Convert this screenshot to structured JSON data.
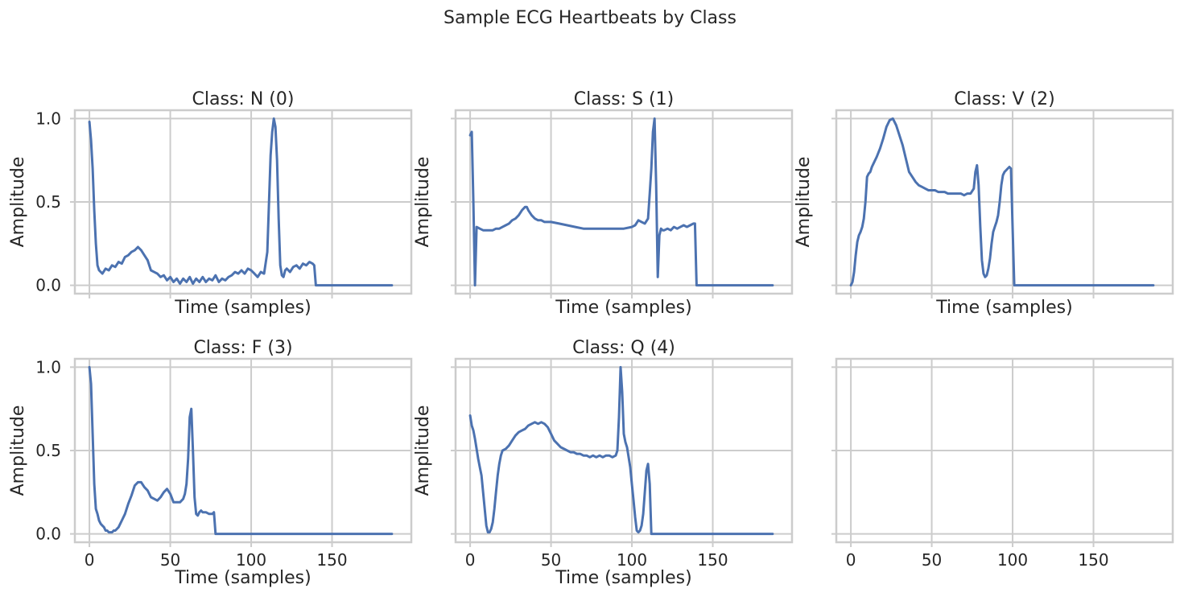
{
  "figure": {
    "title": "Sample ECG Heartbeats by Class"
  },
  "chart_data": [
    {
      "type": "line",
      "title": "Class: N (0)",
      "xlabel": "Time (samples)",
      "ylabel": "Amplitude",
      "xlim": [
        -9,
        199
      ],
      "ylim": [
        -0.05,
        1.05
      ],
      "x_ticks": [
        0,
        50,
        100,
        150
      ],
      "y_ticks": [
        0.0,
        0.5,
        1.0
      ],
      "x_tick_labels": [],
      "y_tick_labels": [
        "0.0",
        "0.5",
        "1.0"
      ],
      "grid": true,
      "x": [
        0,
        1,
        2,
        3,
        4,
        5,
        6,
        7,
        8,
        10,
        12,
        14,
        16,
        18,
        20,
        22,
        24,
        26,
        28,
        30,
        32,
        34,
        36,
        38,
        40,
        42,
        44,
        46,
        48,
        50,
        52,
        54,
        56,
        58,
        60,
        62,
        64,
        66,
        68,
        70,
        72,
        74,
        76,
        78,
        80,
        82,
        84,
        86,
        88,
        90,
        92,
        94,
        96,
        98,
        100,
        102,
        104,
        106,
        108,
        110,
        112,
        113,
        114,
        115,
        116,
        117,
        118,
        119,
        120,
        121,
        122,
        124,
        126,
        128,
        130,
        132,
        134,
        136,
        138,
        139,
        140,
        142,
        144,
        146,
        148,
        150,
        155,
        160,
        165,
        170,
        175,
        180,
        185,
        187
      ],
      "y": [
        0.98,
        0.87,
        0.7,
        0.45,
        0.25,
        0.12,
        0.09,
        0.08,
        0.07,
        0.1,
        0.09,
        0.12,
        0.11,
        0.14,
        0.13,
        0.17,
        0.18,
        0.2,
        0.21,
        0.23,
        0.21,
        0.18,
        0.15,
        0.09,
        0.08,
        0.07,
        0.05,
        0.06,
        0.03,
        0.05,
        0.02,
        0.04,
        0.01,
        0.04,
        0.02,
        0.05,
        0.01,
        0.04,
        0.02,
        0.05,
        0.02,
        0.04,
        0.03,
        0.06,
        0.02,
        0.04,
        0.03,
        0.05,
        0.06,
        0.08,
        0.07,
        0.09,
        0.07,
        0.1,
        0.09,
        0.07,
        0.05,
        0.08,
        0.07,
        0.2,
        0.78,
        0.92,
        1.0,
        0.95,
        0.75,
        0.4,
        0.12,
        0.06,
        0.05,
        0.09,
        0.1,
        0.08,
        0.11,
        0.12,
        0.1,
        0.13,
        0.12,
        0.14,
        0.13,
        0.12,
        0.0,
        0.0,
        0.0,
        0.0,
        0.0,
        0.0,
        0.0,
        0.0,
        0.0,
        0.0,
        0.0,
        0.0,
        0.0,
        0.0
      ],
      "series": [
        {
          "values_ref": "y"
        }
      ]
    },
    {
      "type": "line",
      "title": "Class: S (1)",
      "xlabel": "Time (samples)",
      "ylabel": "Amplitude",
      "xlim": [
        -9,
        199
      ],
      "ylim": [
        -0.05,
        1.05
      ],
      "x_ticks": [
        0,
        50,
        100,
        150
      ],
      "y_ticks": [
        0.0,
        0.5,
        1.0
      ],
      "x_tick_labels": [],
      "y_tick_labels": [],
      "grid": true,
      "x": [
        0,
        1,
        2,
        3,
        4,
        6,
        8,
        10,
        12,
        14,
        16,
        18,
        20,
        22,
        24,
        26,
        28,
        30,
        32,
        34,
        35,
        36,
        38,
        40,
        42,
        44,
        46,
        48,
        50,
        55,
        60,
        65,
        70,
        75,
        80,
        85,
        90,
        95,
        100,
        102,
        104,
        106,
        108,
        110,
        111,
        112,
        113,
        114,
        115,
        116,
        117,
        118,
        119,
        120,
        122,
        124,
        126,
        128,
        130,
        132,
        134,
        136,
        138,
        139,
        140,
        142,
        145,
        150,
        155,
        160,
        165,
        170,
        175,
        180,
        185,
        187
      ],
      "y": [
        0.9,
        0.92,
        0.5,
        0.0,
        0.35,
        0.34,
        0.33,
        0.33,
        0.33,
        0.33,
        0.34,
        0.34,
        0.35,
        0.36,
        0.37,
        0.39,
        0.4,
        0.42,
        0.45,
        0.47,
        0.47,
        0.45,
        0.42,
        0.4,
        0.39,
        0.39,
        0.38,
        0.38,
        0.38,
        0.37,
        0.36,
        0.35,
        0.34,
        0.34,
        0.34,
        0.34,
        0.34,
        0.34,
        0.35,
        0.36,
        0.39,
        0.38,
        0.37,
        0.4,
        0.55,
        0.7,
        0.92,
        1.0,
        0.6,
        0.05,
        0.3,
        0.34,
        0.33,
        0.33,
        0.34,
        0.33,
        0.35,
        0.34,
        0.35,
        0.36,
        0.35,
        0.36,
        0.37,
        0.37,
        0.0,
        0.0,
        0.0,
        0.0,
        0.0,
        0.0,
        0.0,
        0.0,
        0.0,
        0.0,
        0.0,
        0.0
      ],
      "series": [
        {
          "values_ref": "y"
        }
      ]
    },
    {
      "type": "line",
      "title": "Class: V (2)",
      "xlabel": "Time (samples)",
      "ylabel": "Amplitude",
      "xlim": [
        -9,
        199
      ],
      "ylim": [
        -0.05,
        1.05
      ],
      "x_ticks": [
        0,
        50,
        100,
        150
      ],
      "y_ticks": [
        0.0,
        0.5,
        1.0
      ],
      "x_tick_labels": [],
      "y_tick_labels": [],
      "grid": true,
      "x": [
        0,
        1,
        2,
        3,
        4,
        5,
        6,
        7,
        8,
        9,
        10,
        11,
        12,
        13,
        14,
        16,
        18,
        20,
        22,
        24,
        26,
        28,
        30,
        32,
        34,
        36,
        38,
        40,
        42,
        44,
        46,
        48,
        50,
        52,
        54,
        56,
        58,
        60,
        62,
        64,
        66,
        68,
        70,
        72,
        74,
        76,
        77,
        78,
        79,
        80,
        81,
        82,
        83,
        84,
        85,
        86,
        87,
        88,
        89,
        90,
        91,
        92,
        93,
        94,
        95,
        96,
        97,
        98,
        99,
        100,
        101,
        102,
        105,
        110,
        120,
        130,
        140,
        150,
        160,
        170,
        180,
        187
      ],
      "y": [
        0.0,
        0.02,
        0.08,
        0.18,
        0.26,
        0.3,
        0.32,
        0.35,
        0.4,
        0.5,
        0.65,
        0.67,
        0.68,
        0.71,
        0.73,
        0.77,
        0.82,
        0.88,
        0.95,
        0.99,
        1.0,
        0.96,
        0.9,
        0.84,
        0.76,
        0.68,
        0.65,
        0.62,
        0.6,
        0.59,
        0.58,
        0.57,
        0.57,
        0.57,
        0.56,
        0.56,
        0.56,
        0.55,
        0.55,
        0.55,
        0.55,
        0.55,
        0.54,
        0.55,
        0.55,
        0.58,
        0.68,
        0.72,
        0.6,
        0.35,
        0.15,
        0.07,
        0.05,
        0.06,
        0.1,
        0.16,
        0.25,
        0.32,
        0.35,
        0.38,
        0.42,
        0.5,
        0.6,
        0.66,
        0.68,
        0.69,
        0.7,
        0.71,
        0.7,
        0.35,
        0.0,
        0.0,
        0.0,
        0.0,
        0.0,
        0.0,
        0.0,
        0.0,
        0.0,
        0.0,
        0.0,
        0.0
      ],
      "series": [
        {
          "values_ref": "y"
        }
      ]
    },
    {
      "type": "line",
      "title": "Class: F (3)",
      "xlabel": "Time (samples)",
      "ylabel": "Amplitude",
      "xlim": [
        -9,
        199
      ],
      "ylim": [
        -0.05,
        1.05
      ],
      "x_ticks": [
        0,
        50,
        100,
        150
      ],
      "y_ticks": [
        0.0,
        0.5,
        1.0
      ],
      "x_tick_labels": [
        "0",
        "50",
        "100",
        "150"
      ],
      "y_tick_labels": [
        "0.0",
        "0.5",
        "1.0"
      ],
      "grid": true,
      "x": [
        0,
        1,
        2,
        3,
        4,
        5,
        6,
        7,
        8,
        9,
        10,
        11,
        12,
        13,
        14,
        15,
        16,
        17,
        18,
        19,
        20,
        22,
        24,
        26,
        28,
        30,
        32,
        34,
        36,
        38,
        40,
        42,
        44,
        46,
        48,
        50,
        52,
        54,
        56,
        58,
        59,
        60,
        61,
        62,
        63,
        64,
        65,
        66,
        67,
        68,
        69,
        70,
        72,
        74,
        76,
        77,
        78,
        80,
        90,
        100,
        120,
        140,
        160,
        180,
        187
      ],
      "y": [
        1.0,
        0.9,
        0.6,
        0.3,
        0.15,
        0.12,
        0.08,
        0.06,
        0.05,
        0.04,
        0.02,
        0.02,
        0.01,
        0.01,
        0.01,
        0.02,
        0.02,
        0.03,
        0.04,
        0.06,
        0.08,
        0.12,
        0.18,
        0.23,
        0.29,
        0.31,
        0.31,
        0.28,
        0.26,
        0.22,
        0.21,
        0.2,
        0.22,
        0.25,
        0.27,
        0.24,
        0.19,
        0.19,
        0.19,
        0.21,
        0.24,
        0.3,
        0.45,
        0.7,
        0.75,
        0.5,
        0.22,
        0.12,
        0.11,
        0.13,
        0.14,
        0.13,
        0.13,
        0.12,
        0.12,
        0.13,
        0.0,
        0.0,
        0.0,
        0.0,
        0.0,
        0.0,
        0.0,
        0.0,
        0.0
      ],
      "series": [
        {
          "values_ref": "y"
        }
      ]
    },
    {
      "type": "line",
      "title": "Class: Q (4)",
      "xlabel": "Time (samples)",
      "ylabel": "Amplitude",
      "xlim": [
        -9,
        199
      ],
      "ylim": [
        -0.05,
        1.05
      ],
      "x_ticks": [
        0,
        50,
        100,
        150
      ],
      "y_ticks": [
        0.0,
        0.5,
        1.0
      ],
      "x_tick_labels": [
        "0",
        "50",
        "100",
        "150"
      ],
      "y_tick_labels": [],
      "grid": true,
      "x": [
        0,
        1,
        2,
        3,
        4,
        5,
        6,
        7,
        8,
        9,
        10,
        11,
        12,
        13,
        14,
        15,
        16,
        17,
        18,
        19,
        20,
        22,
        24,
        26,
        28,
        30,
        32,
        34,
        36,
        38,
        40,
        42,
        44,
        46,
        48,
        50,
        52,
        54,
        56,
        58,
        60,
        62,
        64,
        66,
        68,
        70,
        72,
        74,
        76,
        78,
        80,
        82,
        84,
        86,
        88,
        90,
        91,
        92,
        93,
        94,
        95,
        96,
        97,
        98,
        99,
        100,
        101,
        102,
        103,
        104,
        105,
        106,
        107,
        108,
        109,
        110,
        111,
        112,
        113,
        114,
        115,
        120,
        130,
        140,
        150,
        160,
        170,
        180,
        187
      ],
      "y": [
        0.71,
        0.65,
        0.62,
        0.57,
        0.51,
        0.45,
        0.4,
        0.35,
        0.25,
        0.15,
        0.05,
        0.01,
        0.01,
        0.03,
        0.07,
        0.15,
        0.25,
        0.35,
        0.42,
        0.47,
        0.5,
        0.51,
        0.53,
        0.56,
        0.59,
        0.61,
        0.62,
        0.63,
        0.65,
        0.66,
        0.67,
        0.66,
        0.67,
        0.66,
        0.64,
        0.6,
        0.56,
        0.54,
        0.52,
        0.51,
        0.5,
        0.49,
        0.49,
        0.48,
        0.48,
        0.47,
        0.47,
        0.46,
        0.47,
        0.46,
        0.47,
        0.46,
        0.47,
        0.47,
        0.46,
        0.47,
        0.5,
        0.7,
        1.0,
        0.85,
        0.6,
        0.55,
        0.52,
        0.46,
        0.4,
        0.3,
        0.2,
        0.1,
        0.02,
        0.01,
        0.02,
        0.05,
        0.12,
        0.25,
        0.38,
        0.42,
        0.3,
        0.0,
        0.0,
        0.0,
        0.0,
        0.0,
        0.0,
        0.0,
        0.0,
        0.0,
        0.0,
        0.0,
        0.0
      ],
      "series": [
        {
          "values_ref": "y"
        }
      ]
    },
    {
      "type": "line",
      "title": "",
      "xlabel": "",
      "ylabel": "",
      "xlim": [
        -9,
        199
      ],
      "ylim": [
        -0.05,
        1.05
      ],
      "x_ticks": [
        0,
        50,
        100,
        150
      ],
      "y_ticks": [
        0.0,
        0.5,
        1.0
      ],
      "x_tick_labels": [
        "0",
        "50",
        "100",
        "150"
      ],
      "y_tick_labels": [],
      "grid": true,
      "x": [],
      "y": [],
      "series": []
    }
  ],
  "colors": {
    "series": "#4c72b0",
    "grid": "#cccccc",
    "text": "#262626"
  }
}
